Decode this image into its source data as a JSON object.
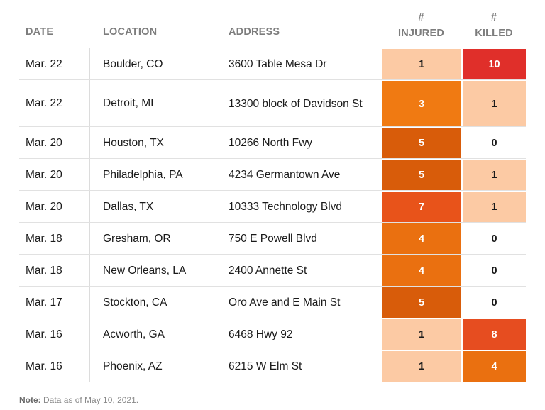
{
  "chart_data": {
    "type": "table",
    "columns": [
      {
        "key": "date",
        "label": "DATE",
        "hash": ""
      },
      {
        "key": "location",
        "label": "LOCATION",
        "hash": ""
      },
      {
        "key": "address",
        "label": "ADDRESS",
        "hash": ""
      },
      {
        "key": "injured",
        "label": "INJURED",
        "hash": "#"
      },
      {
        "key": "killed",
        "label": "KILLED",
        "hash": "#"
      }
    ],
    "rows": [
      {
        "date": "Mar. 22",
        "location": "Boulder, CO",
        "address": "3600 Table Mesa Dr",
        "injured": 1,
        "killed": 10
      },
      {
        "date": "Mar. 22",
        "location": "Detroit, MI",
        "address": "13300 block of Davidson St",
        "injured": 3,
        "killed": 1
      },
      {
        "date": "Mar. 20",
        "location": "Houston, TX",
        "address": "10266 North Fwy",
        "injured": 5,
        "killed": 0
      },
      {
        "date": "Mar. 20",
        "location": "Philadelphia, PA",
        "address": "4234 Germantown Ave",
        "injured": 5,
        "killed": 1
      },
      {
        "date": "Mar. 20",
        "location": "Dallas, TX",
        "address": "10333 Technology Blvd",
        "injured": 7,
        "killed": 1
      },
      {
        "date": "Mar. 18",
        "location": "Gresham, OR",
        "address": "750 E Powell Blvd",
        "injured": 4,
        "killed": 0
      },
      {
        "date": "Mar. 18",
        "location": "New Orleans, LA",
        "address": "2400 Annette St",
        "injured": 4,
        "killed": 0
      },
      {
        "date": "Mar. 17",
        "location": "Stockton, CA",
        "address": "Oro Ave and E Main St",
        "injured": 5,
        "killed": 0
      },
      {
        "date": "Mar. 16",
        "location": "Acworth, GA",
        "address": "6468 Hwy 92",
        "injured": 1,
        "killed": 8
      },
      {
        "date": "Mar. 16",
        "location": "Phoenix, AZ",
        "address": "6215 W Elm St",
        "injured": 1,
        "killed": 4
      }
    ],
    "color_scale": {
      "0": "#ffffff",
      "1": "#fccaa4",
      "3": "#f07a12",
      "4": "#ea7010",
      "5": "#d85c0a",
      "7": "#e8531a",
      "8": "#e64d20",
      "10": "#e02f2a"
    },
    "light_text": "#ffffff",
    "dark_text": "#1a1a1a"
  },
  "note": {
    "label": "Note:",
    "text": "Data as of May 10, 2021."
  }
}
